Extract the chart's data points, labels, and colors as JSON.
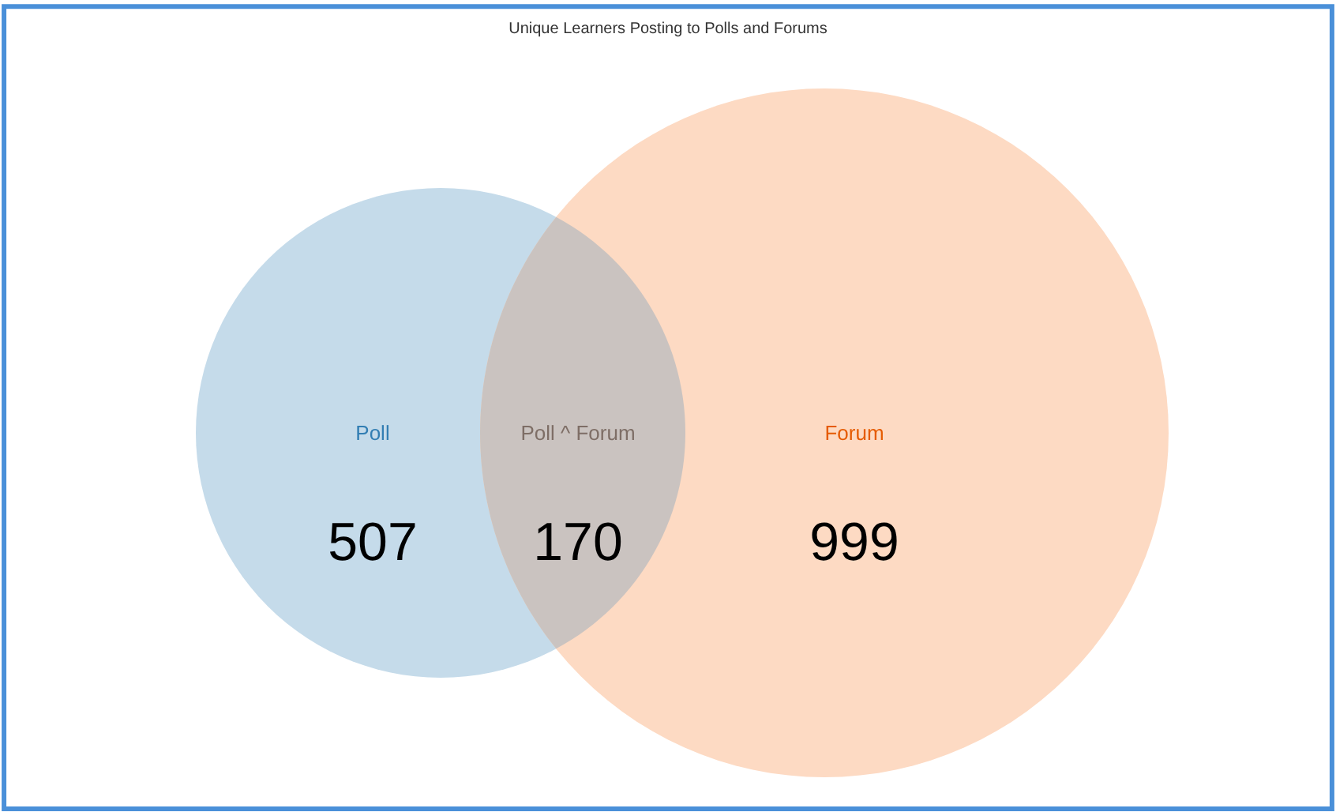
{
  "chart_data": {
    "type": "other",
    "title": "Unique Learners Posting to Polls and Forums",
    "categories": [
      "Poll",
      "Poll ^ Forum",
      "Forum"
    ],
    "values": [
      507,
      170,
      999
    ],
    "colors": [
      "#c5dbea",
      "#cac3c0",
      "#fddac3"
    ],
    "data_labels": true
  }
}
